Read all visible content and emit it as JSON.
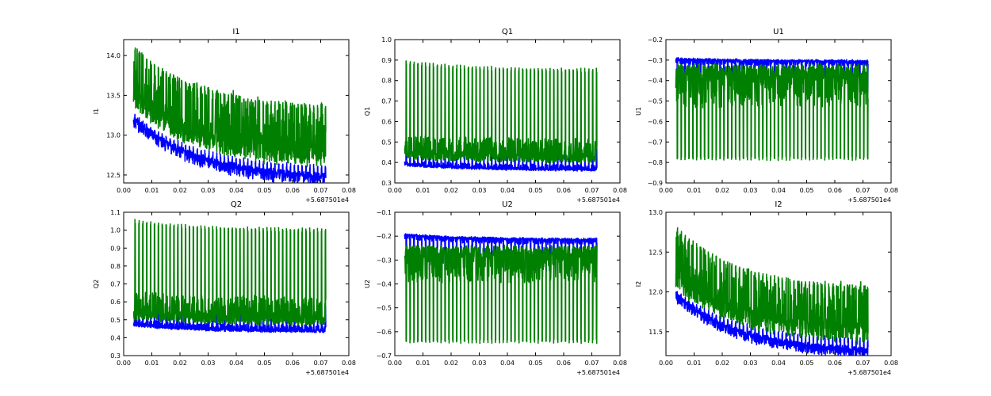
{
  "colors": {
    "series_a": "#0000ff",
    "series_b": "#008000",
    "frame": "#000000"
  },
  "chart_data": [
    {
      "type": "line",
      "title": "I1",
      "xlabel": "",
      "ylabel": "I1",
      "xlim": [
        0.0,
        0.08
      ],
      "ylim": [
        12.4,
        14.2
      ],
      "xticks": [
        "0.00",
        "0.01",
        "0.02",
        "0.03",
        "0.04",
        "0.05",
        "0.06",
        "0.07",
        "0.08"
      ],
      "yticks": [
        "12.5",
        "13.0",
        "13.5",
        "14.0"
      ],
      "offset_label": "+5.687501e4",
      "x_range": [
        0.0035,
        0.0718
      ],
      "series": [
        {
          "color": "#0000ff",
          "base_start": 13.25,
          "base_end": 12.52,
          "low": 0.05,
          "high": 0.08,
          "spike_start": 13.25,
          "spike_end": 12.6
        },
        {
          "color": "#008000",
          "base_start": 13.35,
          "base_end": 12.6,
          "low": 0.07,
          "high": 0.45,
          "spike_start": 14.1,
          "spike_end": 13.35
        }
      ]
    },
    {
      "type": "line",
      "title": "Q1",
      "xlabel": "",
      "ylabel": "Q1",
      "xlim": [
        0.0,
        0.08
      ],
      "ylim": [
        0.3,
        1.0
      ],
      "xticks": [
        "0.00",
        "0.01",
        "0.02",
        "0.03",
        "0.04",
        "0.05",
        "0.06",
        "0.07",
        "0.08"
      ],
      "yticks": [
        "0.3",
        "0.4",
        "0.5",
        "0.6",
        "0.7",
        "0.8",
        "0.9",
        "1.0"
      ],
      "offset_label": "+5.687501e4",
      "x_range": [
        0.0035,
        0.0718
      ],
      "series": [
        {
          "color": "#0000ff",
          "base_start": 0.385,
          "base_end": 0.36,
          "low": 0.02,
          "high": 0.04,
          "spike_start": 0.5,
          "spike_end": 0.48
        },
        {
          "color": "#008000",
          "base_start": 0.42,
          "base_end": 0.4,
          "low": 0.02,
          "high": 0.17,
          "spike_start": 0.89,
          "spike_end": 0.85
        }
      ]
    },
    {
      "type": "line",
      "title": "U1",
      "xlabel": "",
      "ylabel": "U1",
      "xlim": [
        0.0,
        0.08
      ],
      "ylim": [
        -0.9,
        -0.2
      ],
      "xticks": [
        "0.00",
        "0.01",
        "0.02",
        "0.03",
        "0.04",
        "0.05",
        "0.06",
        "0.07",
        "0.08"
      ],
      "yticks": [
        "−0.9",
        "−0.8",
        "−0.7",
        "−0.6",
        "−0.5",
        "−0.4",
        "−0.3",
        "−0.2"
      ],
      "offset_label": "+5.687501e4",
      "x_range": [
        0.0035,
        0.0718
      ],
      "series": [
        {
          "color": "#0000ff",
          "base_start": -0.29,
          "base_end": -0.3,
          "low": 0.02,
          "high": 0.04,
          "spike_start": -0.45,
          "spike_end": -0.45
        },
        {
          "color": "#008000",
          "base_start": -0.32,
          "base_end": -0.32,
          "low": 0.03,
          "high": 0.3,
          "spike_start": -0.78,
          "spike_end": -0.78
        }
      ]
    },
    {
      "type": "line",
      "title": "Q2",
      "xlabel": "",
      "ylabel": "Q2",
      "xlim": [
        0.0,
        0.08
      ],
      "ylim": [
        0.3,
        1.1
      ],
      "xticks": [
        "0.00",
        "0.01",
        "0.02",
        "0.03",
        "0.04",
        "0.05",
        "0.06",
        "0.07",
        "0.08"
      ],
      "yticks": [
        "0.3",
        "0.4",
        "0.5",
        "0.6",
        "0.7",
        "0.8",
        "0.9",
        "1.0",
        "1.1"
      ],
      "offset_label": "+5.687501e4",
      "x_range": [
        0.0035,
        0.0718
      ],
      "series": [
        {
          "color": "#0000ff",
          "base_start": 0.465,
          "base_end": 0.43,
          "low": 0.02,
          "high": 0.05,
          "spike_start": 0.6,
          "spike_end": 0.58
        },
        {
          "color": "#008000",
          "base_start": 0.5,
          "base_end": 0.47,
          "low": 0.02,
          "high": 0.2,
          "spike_start": 1.05,
          "spike_end": 1.0
        }
      ]
    },
    {
      "type": "line",
      "title": "U2",
      "xlabel": "",
      "ylabel": "U2",
      "xlim": [
        0.0,
        0.08
      ],
      "ylim": [
        -0.7,
        -0.1
      ],
      "xticks": [
        "0.00",
        "0.01",
        "0.02",
        "0.03",
        "0.04",
        "0.05",
        "0.06",
        "0.07",
        "0.08"
      ],
      "yticks": [
        "−0.7",
        "−0.6",
        "−0.5",
        "−0.4",
        "−0.3",
        "−0.2",
        "−0.1"
      ],
      "offset_label": "+5.687501e4",
      "x_range": [
        0.0035,
        0.0718
      ],
      "series": [
        {
          "color": "#0000ff",
          "base_start": -0.19,
          "base_end": -0.21,
          "low": 0.02,
          "high": 0.04,
          "spike_start": -0.34,
          "spike_end": -0.34
        },
        {
          "color": "#008000",
          "base_start": -0.24,
          "base_end": -0.24,
          "low": 0.03,
          "high": 0.26,
          "spike_start": -0.64,
          "spike_end": -0.64
        }
      ]
    },
    {
      "type": "line",
      "title": "I2",
      "xlabel": "",
      "ylabel": "I2",
      "xlim": [
        0.0,
        0.08
      ],
      "ylim": [
        11.2,
        13.0
      ],
      "xticks": [
        "0.00",
        "0.01",
        "0.02",
        "0.03",
        "0.04",
        "0.05",
        "0.06",
        "0.07",
        "0.08"
      ],
      "yticks": [
        "11.5",
        "12.0",
        "12.5",
        "13.0"
      ],
      "offset_label": "+5.687501e4",
      "x_range": [
        0.0035,
        0.0718
      ],
      "series": [
        {
          "color": "#0000ff",
          "base_start": 12.0,
          "base_end": 11.3,
          "low": 0.05,
          "high": 0.07,
          "spike_start": 12.0,
          "spike_end": 11.4
        },
        {
          "color": "#008000",
          "base_start": 12.05,
          "base_end": 11.35,
          "low": 0.07,
          "high": 0.42,
          "spike_start": 12.8,
          "spike_end": 12.05
        }
      ]
    }
  ]
}
